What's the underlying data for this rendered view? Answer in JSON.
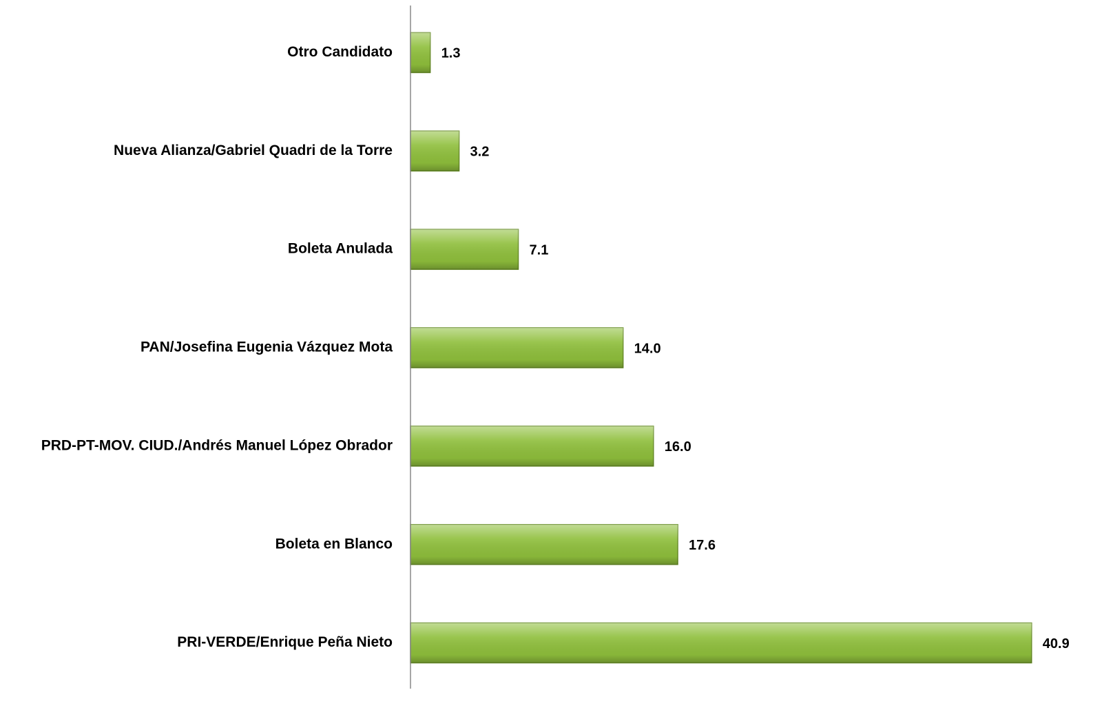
{
  "chart_data": {
    "type": "hbar",
    "categories": [
      "Otro Candidato",
      "Nueva Alianza/Gabriel Quadri de la Torre",
      "Boleta Anulada",
      "PAN/Josefina Eugenia Vázquez Mota",
      "PRD-PT-MOV. CIUD./Andrés Manuel López Obrador",
      "Boleta en Blanco",
      "PRI-VERDE/Enrique Peña Nieto"
    ],
    "values": [
      1.3,
      3.2,
      7.1,
      14.0,
      16.0,
      17.6,
      40.9
    ],
    "value_labels": [
      "1.3",
      "3.2",
      "7.1",
      "14.0",
      "16.0",
      "17.6",
      "40.9"
    ],
    "color": "#8fbf3c",
    "xlim": [
      0,
      41
    ]
  }
}
